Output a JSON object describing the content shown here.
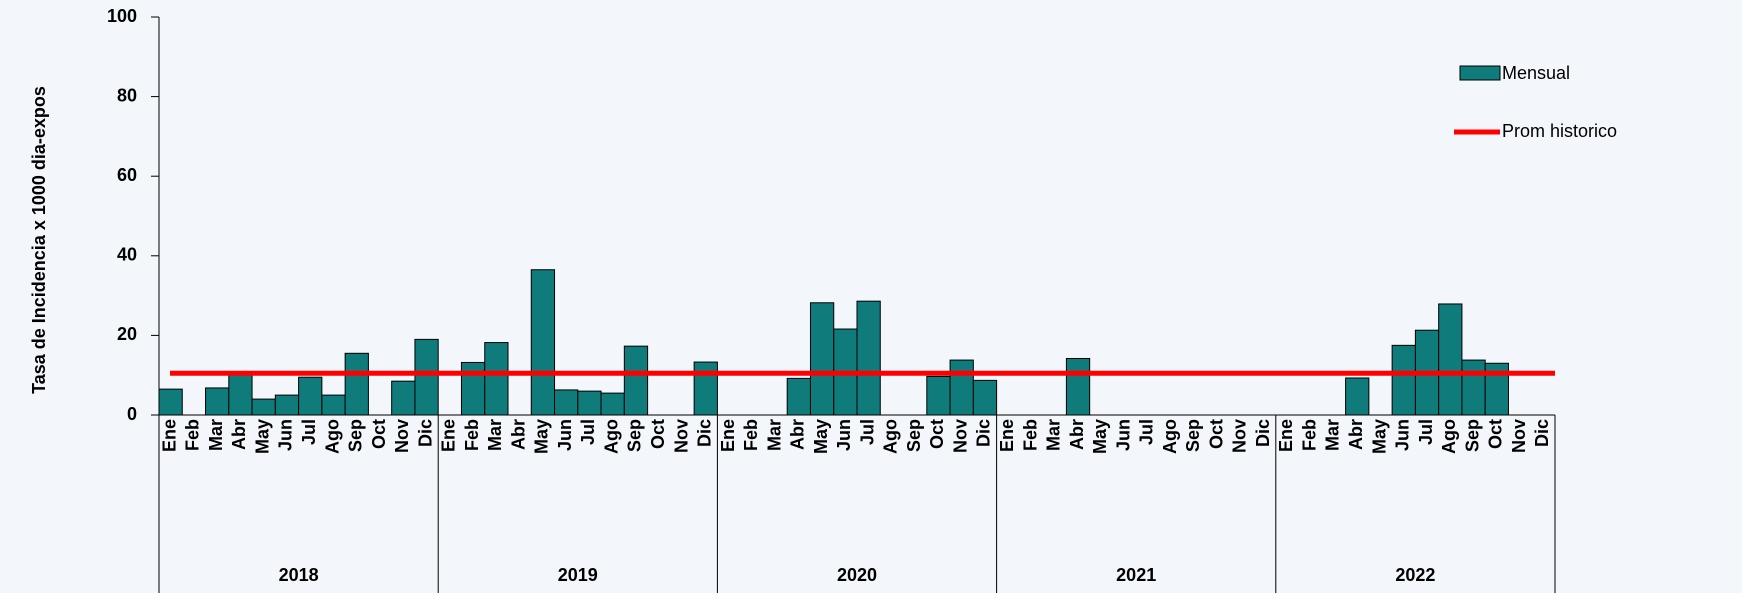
{
  "chart_data": {
    "type": "bar",
    "ylabel": "Tasa de Incidencia x 1000 dia-expos",
    "years": [
      "2018",
      "2019",
      "2020",
      "2021",
      "2022"
    ],
    "categories": [
      "Ene",
      "Feb",
      "Mar",
      "Abr",
      "May",
      "Jun",
      "Jul",
      "Ago",
      "Sep",
      "Oct",
      "Nov",
      "Dic",
      "Ene",
      "Feb",
      "Mar",
      "Abr",
      "May",
      "Jun",
      "Jul",
      "Ago",
      "Sep",
      "Oct",
      "Nov",
      "Dic",
      "Ene",
      "Feb",
      "Mar",
      "Abr",
      "May",
      "Jun",
      "Jul",
      "Ago",
      "Sep",
      "Oct",
      "Nov",
      "Dic",
      "Ene",
      "Feb",
      "Mar",
      "Abr",
      "May",
      "Jun",
      "Jul",
      "Ago",
      "Sep",
      "Oct",
      "Nov",
      "Dic",
      "Ene",
      "Feb",
      "Mar",
      "Abr",
      "May",
      "Jun",
      "Jul",
      "Ago",
      "Sep",
      "Oct",
      "Nov",
      "Dic"
    ],
    "series": [
      {
        "name": "Mensual",
        "color": "#0f7b7b",
        "values": [
          6.5,
          0,
          6.8,
          10.5,
          4,
          5,
          9.5,
          5,
          15.5,
          0,
          8.5,
          19,
          0,
          13.2,
          18.2,
          0,
          36.5,
          6.3,
          6,
          5.5,
          17.3,
          0,
          0,
          13.3,
          0,
          0,
          0,
          9.2,
          28.2,
          21.6,
          28.6,
          0,
          0,
          9.7,
          13.8,
          8.7,
          0,
          0,
          0,
          14.2,
          0,
          0,
          0,
          0,
          0,
          0,
          0,
          0,
          0,
          0,
          0,
          9.3,
          0,
          17.5,
          21.3,
          27.9,
          13.8,
          13,
          0,
          0
        ]
      },
      {
        "name": "Prom historico",
        "color": "#ff0000",
        "value": 10.5
      }
    ],
    "ylim": [
      0,
      100
    ],
    "yticks": [
      0,
      20,
      40,
      60,
      80,
      100
    ]
  }
}
